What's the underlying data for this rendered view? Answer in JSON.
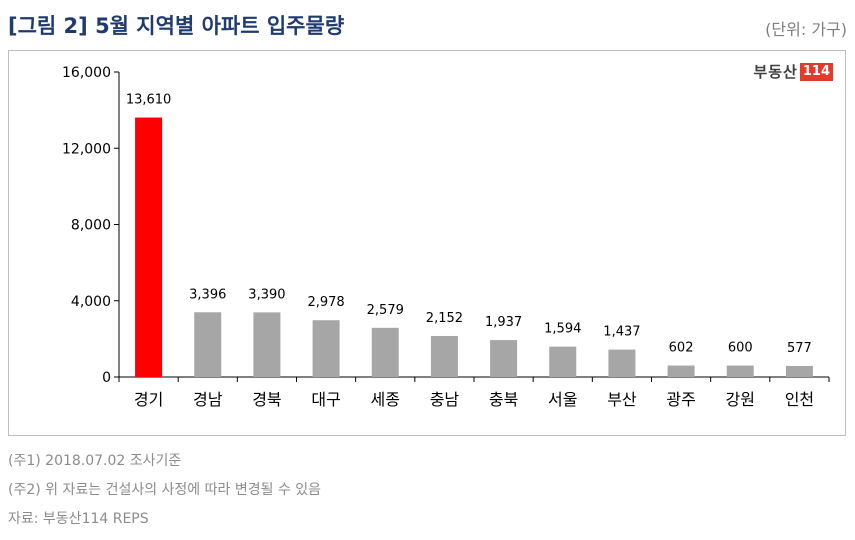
{
  "header": {
    "title": "[그림 2] 5월 지역별 아파트 입주물량",
    "unit": "(단위: 가구)"
  },
  "brand": {
    "name": "부동산",
    "number": "114"
  },
  "notes": [
    "(주1) 2018.07.02 조사기준",
    "(주2) 위 자료는 건설사의 사정에 따라 변경될 수 있음",
    "자료: 부동산114 REPS"
  ],
  "colors": {
    "highlight": "#ff0000",
    "bar": "#a6a6a6",
    "title": "#1f3b70",
    "brand_accent": "#e23a2b"
  },
  "chart_data": {
    "type": "bar",
    "title": "[그림 2] 5월 지역별 아파트 입주물량",
    "categories": [
      "경기",
      "경남",
      "경북",
      "대구",
      "세종",
      "충남",
      "충북",
      "서울",
      "부산",
      "광주",
      "강원",
      "인천"
    ],
    "values": [
      13610,
      3396,
      3390,
      2978,
      2579,
      2152,
      1937,
      1594,
      1437,
      602,
      600,
      577
    ],
    "value_labels": [
      "13,610",
      "3,396",
      "3,390",
      "2,978",
      "2,579",
      "2,152",
      "1,937",
      "1,594",
      "1,437",
      "602",
      "600",
      "577"
    ],
    "highlight_index": 0,
    "ylim": [
      0,
      16000
    ],
    "yticks": [
      0,
      4000,
      8000,
      12000,
      16000
    ],
    "ytick_labels": [
      "0",
      "4,000",
      "8,000",
      "12,000",
      "16,000"
    ],
    "xlabel": "",
    "ylabel": "",
    "grid": false,
    "legend": "none"
  }
}
